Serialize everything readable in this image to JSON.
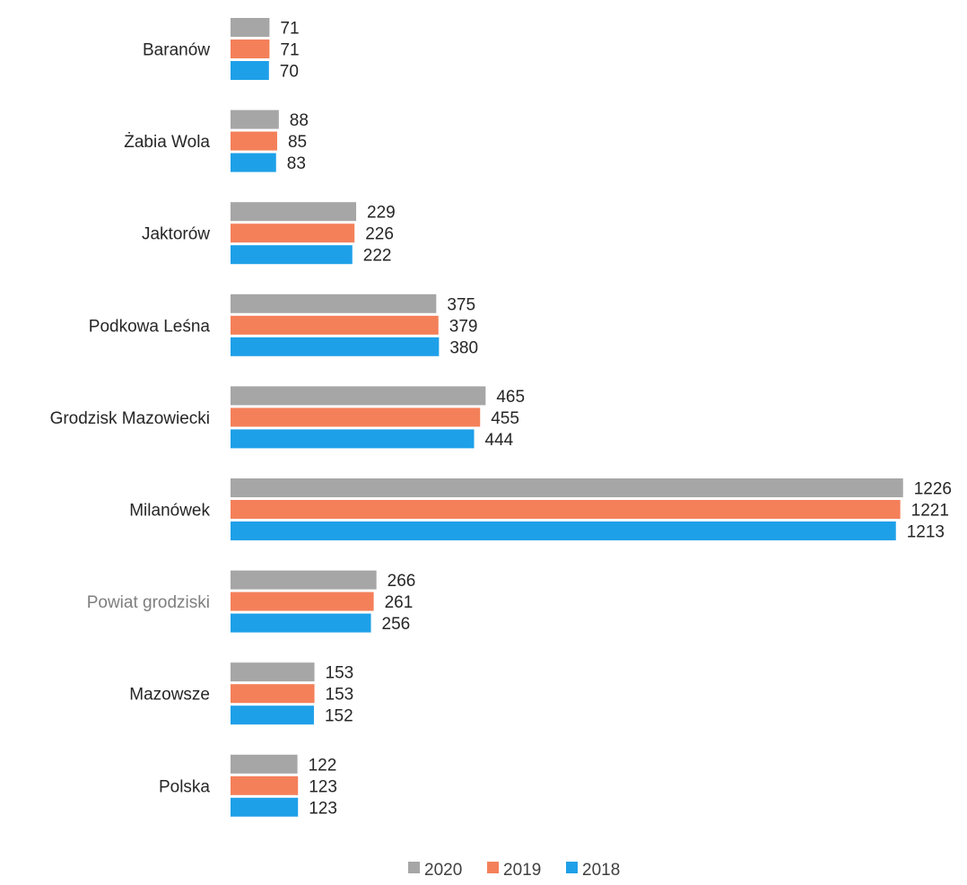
{
  "chart_data": {
    "type": "bar",
    "orientation": "horizontal",
    "categories": [
      "Baranów",
      "Żabia Wola",
      "Jaktorów",
      "Podkowa Leśna",
      "Grodzisk Mazowiecki",
      "Milanówek",
      "Powiat grodziski",
      "Mazowsze",
      "Polska"
    ],
    "highlighted_category": "Powiat grodziski",
    "series": [
      {
        "name": "2020",
        "color": "#a6a6a6",
        "values": [
          71,
          88,
          229,
          375,
          465,
          1226,
          266,
          153,
          122
        ]
      },
      {
        "name": "2019",
        "color": "#f4805a",
        "values": [
          71,
          85,
          226,
          379,
          455,
          1221,
          261,
          153,
          123
        ]
      },
      {
        "name": "2018",
        "color": "#1ea0e8",
        "values": [
          70,
          83,
          222,
          380,
          444,
          1213,
          256,
          152,
          123
        ]
      }
    ],
    "legend": {
      "position": "bottom",
      "entries": [
        "2020",
        "2019",
        "2018"
      ]
    },
    "grid": false,
    "data_labels": true,
    "title": "",
    "xlabel": "",
    "ylabel": ""
  }
}
